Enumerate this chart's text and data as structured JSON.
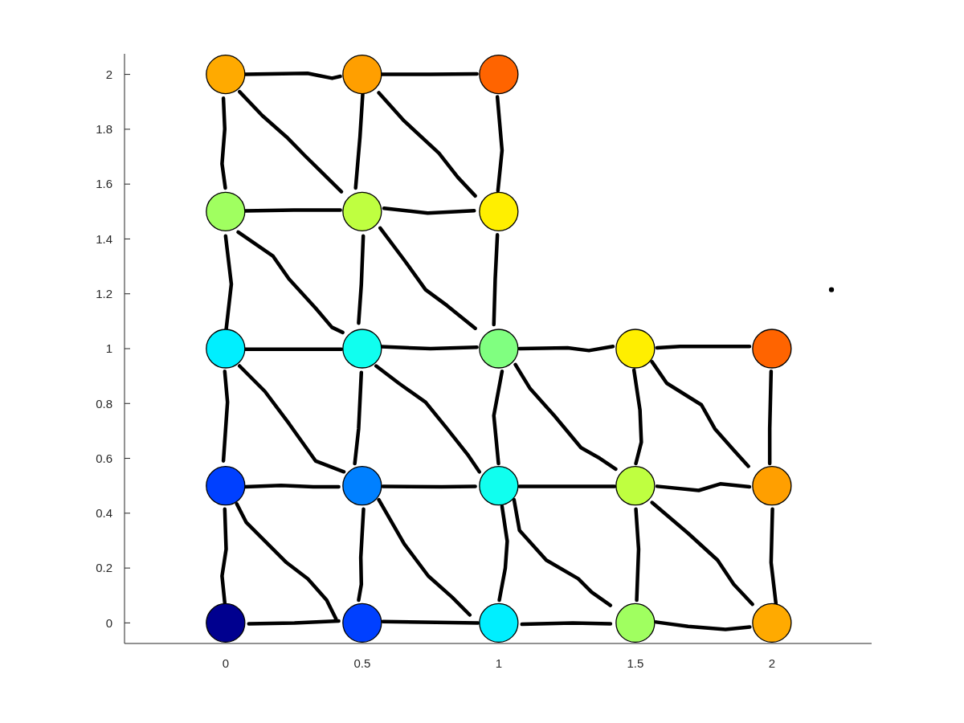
{
  "chart_data": {
    "type": "bubble",
    "xlim": [
      -0.37,
      2.365
    ],
    "ylim": [
      -0.075,
      2.075
    ],
    "xticks": [
      0,
      0.5,
      1,
      1.5,
      2
    ],
    "yticks": [
      0,
      0.2,
      0.4,
      0.6,
      0.8,
      1,
      1.2,
      1.4,
      1.6,
      1.8,
      2
    ],
    "series": [
      {
        "type": "line",
        "color": "#000000",
        "x": [
          0.07,
          0.3,
          0.34,
          0.39,
          0.42
        ],
        "values": [
          2.0,
          2.004,
          1.996,
          1.986,
          1.993
        ]
      },
      {
        "type": "line",
        "color": "#000000",
        "x": [
          0.57,
          0.75,
          0.92
        ],
        "values": [
          2.0,
          2.0,
          2.002
        ]
      },
      {
        "type": "line",
        "color": "#000000",
        "x": [
          0.07,
          0.25,
          0.42
        ],
        "values": [
          1.502,
          1.505,
          1.505
        ]
      },
      {
        "type": "line",
        "color": "#000000",
        "x": [
          0.58,
          0.74,
          0.91
        ],
        "values": [
          1.512,
          1.494,
          1.503
        ]
      },
      {
        "type": "line",
        "color": "#000000",
        "x": [
          0.065,
          0.424
        ],
        "values": [
          0.998,
          0.998
        ]
      },
      {
        "type": "line",
        "color": "#000000",
        "x": [
          0.57,
          0.75,
          0.92
        ],
        "values": [
          1.007,
          1.0,
          1.005
        ]
      },
      {
        "type": "line",
        "color": "#000000",
        "x": [
          1.076,
          1.252,
          1.33,
          1.418
        ],
        "values": [
          1.0,
          1.003,
          0.993,
          1.008
        ]
      },
      {
        "type": "line",
        "color": "#000000",
        "x": [
          1.579,
          1.664,
          1.918
        ],
        "values": [
          1.003,
          1.008,
          1.008
        ]
      },
      {
        "type": "line",
        "color": "#000000",
        "x": [
          0.071,
          0.203,
          0.321,
          0.414
        ],
        "values": [
          0.496,
          0.501,
          0.496,
          0.496
        ]
      },
      {
        "type": "line",
        "color": "#000000",
        "x": [
          0.576,
          0.791,
          0.914
        ],
        "values": [
          0.498,
          0.496,
          0.498
        ]
      },
      {
        "type": "line",
        "color": "#000000",
        "x": [
          1.076,
          1.424
        ],
        "values": [
          0.498,
          0.498
        ]
      },
      {
        "type": "line",
        "color": "#000000",
        "x": [
          1.58,
          1.732,
          1.811,
          1.918
        ],
        "values": [
          0.498,
          0.483,
          0.507,
          0.496
        ]
      },
      {
        "type": "line",
        "color": "#000000",
        "x": [
          0.085,
          0.252,
          0.414
        ],
        "values": [
          -0.003,
          0,
          0.007
        ]
      },
      {
        "type": "line",
        "color": "#000000",
        "x": [
          0.576,
          0.924
        ],
        "values": [
          0.005,
          0.0
        ]
      },
      {
        "type": "line",
        "color": "#000000",
        "x": [
          1.085,
          1.271,
          1.409
        ],
        "values": [
          -0.005,
          0,
          -0.003
        ]
      },
      {
        "type": "line",
        "color": "#000000",
        "x": [
          1.576,
          1.693,
          1.83,
          1.919
        ],
        "values": [
          0.003,
          -0.013,
          -0.024,
          -0.015
        ]
      },
      {
        "type": "line",
        "color": "#000000",
        "x": [
          -0.008,
          -0.003,
          -0.013,
          -0.001
        ],
        "values": [
          1.913,
          1.801,
          1.674,
          1.586
        ]
      },
      {
        "type": "line",
        "color": "#000000",
        "x": [
          0,
          0.021,
          0.002
        ],
        "values": [
          1.411,
          1.235,
          1.069
        ]
      },
      {
        "type": "line",
        "color": "#000000",
        "x": [
          -0.003,
          0.007,
          -0.008
        ],
        "values": [
          0.917,
          0.805,
          0.591
        ]
      },
      {
        "type": "line",
        "color": "#000000",
        "x": [
          -0.003,
          0.002,
          -0.013,
          -0.003
        ],
        "values": [
          0.415,
          0.269,
          0.171,
          0.073
        ]
      },
      {
        "type": "line",
        "color": "#000000",
        "x": [
          0.502,
          0.492,
          0.476
        ],
        "values": [
          1.928,
          1.772,
          1.586
        ]
      },
      {
        "type": "line",
        "color": "#000000",
        "x": [
          0.504,
          0.497,
          0.487
        ],
        "values": [
          1.411,
          1.235,
          1.093
        ]
      },
      {
        "type": "line",
        "color": "#000000",
        "x": [
          0.497,
          0.487,
          0.473
        ],
        "values": [
          0.913,
          0.708,
          0.581
        ]
      },
      {
        "type": "line",
        "color": "#000000",
        "x": [
          0.505,
          0.495,
          0.497,
          0.487
        ],
        "values": [
          0.415,
          0.239,
          0.141,
          0.083
        ]
      },
      {
        "type": "line",
        "color": "#000000",
        "x": [
          0.995,
          1.012,
          0.997
        ],
        "values": [
          1.918,
          1.723,
          1.576
        ]
      },
      {
        "type": "line",
        "color": "#000000",
        "x": [
          0.995,
          0.987,
          0.982
        ],
        "values": [
          1.415,
          1.254,
          1.088
        ]
      },
      {
        "type": "line",
        "color": "#000000",
        "x": [
          1.012,
          0.982,
          0.999
        ],
        "values": [
          0.917,
          0.756,
          0.581
        ]
      },
      {
        "type": "line",
        "color": "#000000",
        "x": [
          1.012,
          1.031,
          1.024,
          1.002
        ],
        "values": [
          0.425,
          0.298,
          0.2,
          0.083
        ]
      },
      {
        "type": "line",
        "color": "#000000",
        "x": [
          1.495,
          1.517,
          1.522,
          1.502
        ],
        "values": [
          0.922,
          0.776,
          0.659,
          0.581
        ]
      },
      {
        "type": "line",
        "color": "#000000",
        "x": [
          1.502,
          1.512,
          1.505
        ],
        "values": [
          0.415,
          0.269,
          0.083
        ]
      },
      {
        "type": "line",
        "color": "#000000",
        "x": [
          1.997,
          1.992,
          1.992
        ],
        "values": [
          0.917,
          0.708,
          0.581
        ]
      },
      {
        "type": "line",
        "color": "#000000",
        "x": [
          2.002,
          1.997,
          2.015
        ],
        "values": [
          0.415,
          0.22,
          0.068
        ]
      },
      {
        "type": "line",
        "color": "#000000",
        "x": [
          0.051,
          0.134,
          0.223,
          0.291,
          0.36,
          0.424
        ],
        "values": [
          1.937,
          1.85,
          1.772,
          1.703,
          1.635,
          1.572
        ]
      },
      {
        "type": "line",
        "color": "#000000",
        "x": [
          0.561,
          0.654,
          0.781,
          0.85,
          0.914
        ],
        "values": [
          1.933,
          1.83,
          1.713,
          1.625,
          1.557
        ]
      },
      {
        "type": "line",
        "color": "#000000",
        "x": [
          0.046,
          0.174,
          0.232,
          0.33,
          0.389,
          0.429
        ],
        "values": [
          1.425,
          1.337,
          1.254,
          1.147,
          1.078,
          1.059
        ]
      },
      {
        "type": "line",
        "color": "#000000",
        "x": [
          0.566,
          0.654,
          0.732,
          0.811,
          0.914
        ],
        "values": [
          1.44,
          1.323,
          1.215,
          1.157,
          1.074
        ]
      },
      {
        "type": "line",
        "color": "#000000",
        "x": [
          0.051,
          0.144,
          0.232,
          0.33,
          0.433
        ],
        "values": [
          0.937,
          0.844,
          0.727,
          0.59,
          0.551
        ]
      },
      {
        "type": "line",
        "color": "#000000",
        "x": [
          0.551,
          0.634,
          0.732,
          0.811,
          0.889,
          0.929
        ],
        "values": [
          0.937,
          0.874,
          0.805,
          0.708,
          0.61,
          0.551
        ]
      },
      {
        "type": "line",
        "color": "#000000",
        "x": [
          0.041,
          0.076,
          0.223,
          0.301,
          0.37,
          0.404
        ],
        "values": [
          0.434,
          0.366,
          0.22,
          0.161,
          0.083,
          0.015
        ]
      },
      {
        "type": "line",
        "color": "#000000",
        "x": [
          0.561,
          0.654,
          0.742,
          0.83,
          0.894
        ],
        "values": [
          0.449,
          0.288,
          0.171,
          0.093,
          0.029
        ]
      },
      {
        "type": "line",
        "color": "#000000",
        "x": [
          1.061,
          1.115,
          1.203,
          1.301,
          1.37,
          1.428
        ],
        "values": [
          0.942,
          0.854,
          0.756,
          0.639,
          0.6,
          0.561
        ]
      },
      {
        "type": "line",
        "color": "#000000",
        "x": [
          1.561,
          1.615,
          1.742,
          1.791,
          1.86,
          1.914
        ],
        "values": [
          0.952,
          0.874,
          0.795,
          0.708,
          0.63,
          0.571
        ]
      },
      {
        "type": "line",
        "color": "#000000",
        "x": [
          1.056,
          1.076,
          1.174,
          1.291,
          1.34,
          1.409
        ],
        "values": [
          0.449,
          0.337,
          0.229,
          0.161,
          0.112,
          0.064
        ]
      },
      {
        "type": "line",
        "color": "#000000",
        "x": [
          1.561,
          1.693,
          1.801,
          1.86,
          1.929
        ],
        "values": [
          0.439,
          0.327,
          0.229,
          0.141,
          0.068
        ]
      },
      {
        "x": [
          0,
          0.5,
          1,
          0,
          0.5,
          1,
          0,
          0.5,
          1,
          1.5,
          2,
          0,
          0.5,
          1,
          1.5,
          2,
          0,
          0.5,
          1,
          1.5,
          2,
          2.218
        ],
        "values": [
          2,
          2,
          2,
          1.5,
          1.5,
          1.5,
          1,
          1,
          1,
          1,
          1,
          0.5,
          0.5,
          0.5,
          0.5,
          0.5,
          0,
          0,
          0,
          0,
          0,
          1.215
        ],
        "sizes": [
          1,
          1,
          1,
          1,
          1,
          1,
          1,
          1,
          1,
          1,
          1,
          1,
          1,
          1,
          1,
          1,
          1,
          1,
          1,
          1,
          1,
          0.011
        ],
        "colors": [
          "#ffaa00",
          "#ff9f00",
          "#ff6400",
          "#a0ff60",
          "#bfff40",
          "#ffef00",
          "#00efff",
          "#10ffef",
          "#80ff80",
          "#ffef00",
          "#ff6400",
          "#0040ff",
          "#0080ff",
          "#10ffef",
          "#bfff40",
          "#ff9f00",
          "#00008f",
          "#0040ff",
          "#00efff",
          "#a0ff60",
          "#ffaa00",
          "#000000"
        ]
      }
    ]
  }
}
